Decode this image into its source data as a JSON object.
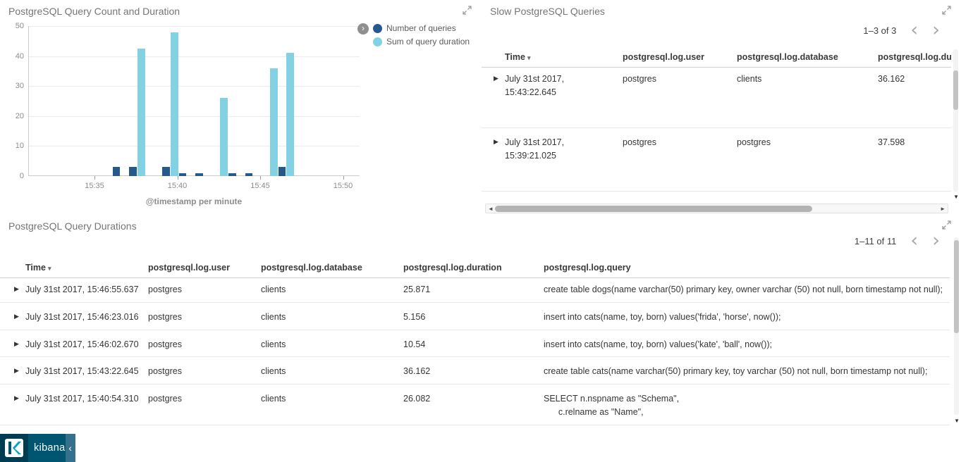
{
  "icons": {
    "sort_desc": "▾",
    "row_expand": "▶",
    "page_prev": "‹",
    "page_next": "›",
    "legend_toggle": "›",
    "collapse_nav": "‹",
    "scroll_left": "◄",
    "scroll_right": "►",
    "scroll_down": "▼"
  },
  "nav": {
    "logo_text": "kibana"
  },
  "panels": {
    "slow": {
      "title": "Slow PostgreSQL Queries",
      "pagination": "1–3 of 3",
      "columns": {
        "time": "Time",
        "user": "postgresql.log.user",
        "database": "postgresql.log.database",
        "duration": "postgresql.log.duration"
      },
      "rows": [
        {
          "time": "July 31st 2017, 15:43:22.645",
          "user": "postgres",
          "database": "clients",
          "duration": "36.162"
        },
        {
          "time": "July 31st 2017, 15:39:21.025",
          "user": "postgres",
          "database": "postgres",
          "duration": "37.598"
        }
      ]
    },
    "durations": {
      "title": "PostgreSQL Query Durations",
      "pagination": "1–11 of 11",
      "columns": {
        "time": "Time",
        "user": "postgresql.log.user",
        "database": "postgresql.log.database",
        "duration": "postgresql.log.duration",
        "query": "postgresql.log.query"
      },
      "rows": [
        {
          "time": "July 31st 2017, 15:46:55.637",
          "user": "postgres",
          "database": "clients",
          "duration": "25.871",
          "query": "create table dogs(name varchar(50) primary key, owner varchar (50) not null, born timestamp not null);"
        },
        {
          "time": "July 31st 2017, 15:46:23.016",
          "user": "postgres",
          "database": "clients",
          "duration": "5.156",
          "query": "insert into cats(name, toy, born) values('frida', 'horse', now());"
        },
        {
          "time": "July 31st 2017, 15:46:02.670",
          "user": "postgres",
          "database": "clients",
          "duration": "10.54",
          "query": "insert into cats(name, toy, born) values('kate', 'ball', now());"
        },
        {
          "time": "July 31st 2017, 15:43:22.645",
          "user": "postgres",
          "database": "clients",
          "duration": "36.162",
          "query": "create table cats(name varchar(50) primary key, toy varchar (50) not null, born timestamp not null);"
        },
        {
          "time": "July 31st 2017, 15:40:54.310",
          "user": "postgres",
          "database": "clients",
          "duration": "26.082",
          "query": "SELECT n.nspname as \"Schema\",\n      c.relname as \"Name\","
        }
      ]
    }
  },
  "chart_data": {
    "type": "bar",
    "title": "PostgreSQL Query Count and Duration",
    "xlabel": "@timestamp per minute",
    "ylabel": "",
    "ylim": [
      0,
      50
    ],
    "y_ticks": [
      0,
      10,
      20,
      30,
      40,
      50
    ],
    "x_domain_minutes": [
      "15:31",
      "15:51"
    ],
    "x_ticks": [
      "15:35",
      "15:40",
      "15:45",
      "15:50"
    ],
    "categories": [
      "15:36",
      "15:37",
      "15:38",
      "15:39",
      "15:40",
      "15:41",
      "15:42",
      "15:43",
      "15:44",
      "15:45",
      "15:46"
    ],
    "series": [
      {
        "name": "Number of queries",
        "color": "#25598c",
        "values": [
          3,
          3,
          0,
          3,
          1,
          1,
          0,
          1,
          1,
          0,
          3
        ]
      },
      {
        "name": "Sum of query duration",
        "color": "#83d2e4",
        "values": [
          0,
          42.5,
          0,
          48,
          0,
          0,
          26,
          0,
          0,
          36,
          41
        ]
      }
    ],
    "grid": true,
    "legend_position": "right"
  }
}
